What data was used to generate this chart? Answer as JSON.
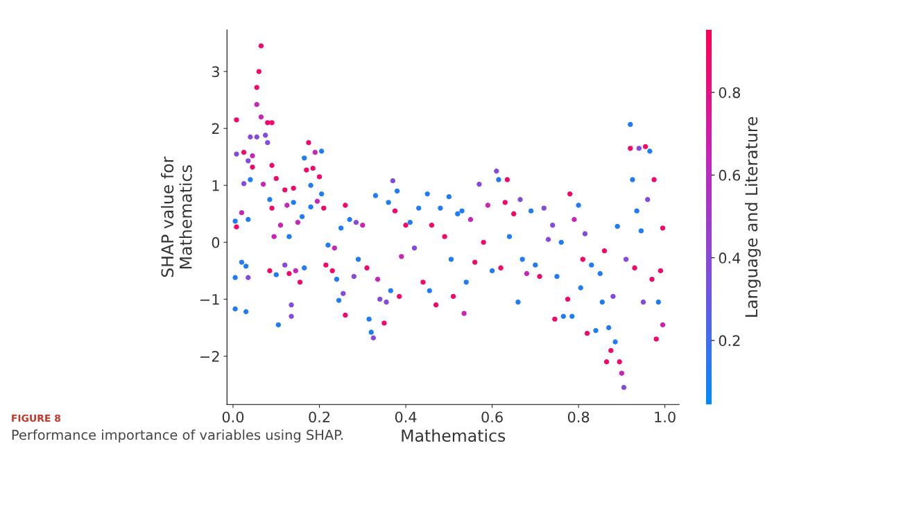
{
  "chart_data": {
    "type": "scatter",
    "xlabel": "Mathematics",
    "ylabel": "SHAP value for\nMathematics",
    "clabel": "Language and Literature",
    "annotations": [
      "FIGURE 8",
      "Performance importance of variables using SHAP."
    ],
    "xlim": [
      -0.014,
      1.033
    ],
    "ylim": [
      -2.85,
      3.73
    ],
    "xticks": [
      {
        "value": 0,
        "label": "0.0"
      },
      {
        "value": 0.2,
        "label": "0.2"
      },
      {
        "value": 0.4,
        "label": "0.4"
      },
      {
        "value": 0.6,
        "label": "0.6"
      },
      {
        "value": 0.8,
        "label": "0.8"
      },
      {
        "value": 1,
        "label": "1.0"
      }
    ],
    "yticks": [
      {
        "value": -2,
        "label": "−2"
      },
      {
        "value": -1,
        "label": "−1"
      },
      0,
      1,
      2,
      3
    ],
    "clim": [
      0.045,
      0.951
    ],
    "cticks": [
      0.2,
      0.4,
      0.6,
      0.8
    ],
    "grid": false,
    "legend": false,
    "marker": "circle",
    "x": [
      0.008,
      0.008,
      0.005,
      0.005,
      0.005,
      0.008,
      0.02,
      0.02,
      0.025,
      0.025,
      0.03,
      0.03,
      0.035,
      0.035,
      0.035,
      0.04,
      0.04,
      0.045,
      0.045,
      0.055,
      0.055,
      0.055,
      0.06,
      0.065,
      0.065,
      0.07,
      0.075,
      0.08,
      0.08,
      0.085,
      0.09,
      0.09,
      0.085,
      0.09,
      0.095,
      0.1,
      0.1,
      0.105,
      0.11,
      0.12,
      0.12,
      0.125,
      0.13,
      0.13,
      0.135,
      0.135,
      0.14,
      0.14,
      0.145,
      0.15,
      0.155,
      0.16,
      0.165,
      0.165,
      0.17,
      0.175,
      0.18,
      0.18,
      0.185,
      0.19,
      0.195,
      0.2,
      0.205,
      0.205,
      0.21,
      0.215,
      0.22,
      0.23,
      0.235,
      0.24,
      0.245,
      0.25,
      0.255,
      0.26,
      0.26,
      0.27,
      0.28,
      0.285,
      0.29,
      0.3,
      0.31,
      0.315,
      0.32,
      0.325,
      0.33,
      0.335,
      0.34,
      0.35,
      0.355,
      0.36,
      0.365,
      0.37,
      0.375,
      0.38,
      0.385,
      0.39,
      0.4,
      0.41,
      0.42,
      0.43,
      0.44,
      0.45,
      0.455,
      0.46,
      0.47,
      0.48,
      0.49,
      0.5,
      0.505,
      0.51,
      0.52,
      0.53,
      0.535,
      0.54,
      0.55,
      0.56,
      0.57,
      0.58,
      0.59,
      0.6,
      0.61,
      0.615,
      0.62,
      0.63,
      0.635,
      0.64,
      0.65,
      0.66,
      0.665,
      0.67,
      0.68,
      0.69,
      0.7,
      0.71,
      0.72,
      0.73,
      0.74,
      0.745,
      0.75,
      0.76,
      0.765,
      0.775,
      0.78,
      0.785,
      0.79,
      0.8,
      0.805,
      0.81,
      0.815,
      0.82,
      0.83,
      0.84,
      0.85,
      0.855,
      0.86,
      0.865,
      0.87,
      0.875,
      0.88,
      0.885,
      0.89,
      0.895,
      0.9,
      0.905,
      0.91,
      0.92,
      0.92,
      0.925,
      0.93,
      0.935,
      0.94,
      0.945,
      0.95,
      0.955,
      0.96,
      0.965,
      0.97,
      0.975,
      0.98,
      0.985,
      0.99,
      0.995,
      0.995
    ],
    "values": [
      2.15,
      0.27,
      0.37,
      -0.62,
      -1.17,
      1.55,
      0.52,
      -0.35,
      1.58,
      1.03,
      -1.22,
      -0.42,
      0.4,
      1.43,
      -0.62,
      1.1,
      1.85,
      1.32,
      1.52,
      1.85,
      2.72,
      2.42,
      3.0,
      3.45,
      2.2,
      1.02,
      1.88,
      2.1,
      1.75,
      0.75,
      2.1,
      1.35,
      -0.5,
      0.6,
      0.1,
      1.12,
      -0.57,
      -1.45,
      0.3,
      0.92,
      -0.4,
      0.65,
      -0.55,
      0.1,
      -1.1,
      -1.3,
      0.7,
      0.95,
      -0.5,
      0.35,
      -0.7,
      0.45,
      1.48,
      -0.45,
      1.27,
      1.75,
      0.62,
      1.0,
      1.3,
      1.58,
      0.72,
      1.15,
      1.6,
      0.85,
      0.6,
      -0.4,
      -0.05,
      -0.5,
      -0.1,
      -0.65,
      -1.02,
      0.25,
      -0.9,
      0.65,
      -1.28,
      0.4,
      -0.6,
      0.35,
      -0.3,
      0.3,
      -0.45,
      -1.35,
      -1.58,
      -1.68,
      0.82,
      -0.65,
      -1.0,
      -1.42,
      -1.05,
      0.7,
      -0.85,
      1.08,
      0.55,
      0.9,
      -0.95,
      -0.25,
      0.3,
      0.35,
      -0.1,
      0.6,
      -0.7,
      0.85,
      -0.85,
      0.3,
      -1.1,
      0.6,
      0.1,
      0.8,
      -0.3,
      -0.95,
      0.5,
      0.55,
      -1.25,
      -0.7,
      0.4,
      -0.35,
      1.02,
      0.0,
      0.65,
      -0.5,
      1.25,
      1.1,
      -0.45,
      0.7,
      1.1,
      0.1,
      0.5,
      -1.05,
      0.75,
      -0.3,
      -0.55,
      0.55,
      -0.4,
      -0.6,
      0.6,
      0.05,
      0.3,
      -1.35,
      -0.6,
      0.0,
      -1.3,
      -1.0,
      0.85,
      -1.3,
      0.4,
      0.65,
      -0.8,
      -0.3,
      0.15,
      -1.6,
      -0.4,
      -1.55,
      -0.55,
      -1.05,
      -0.15,
      -2.1,
      -1.5,
      -1.9,
      -0.95,
      -1.75,
      0.28,
      -2.1,
      -2.3,
      -2.55,
      -0.3,
      2.07,
      1.65,
      1.1,
      -0.45,
      0.55,
      1.65,
      0.2,
      -1.05,
      1.68,
      0.75,
      1.6,
      -0.65,
      1.1,
      -1.7,
      -1.05,
      -0.5,
      0.25,
      -1.45
    ],
    "cvalues": [
      0.88,
      0.88,
      0.12,
      0.12,
      0.12,
      0.38,
      0.65,
      0.12,
      0.88,
      0.38,
      0.12,
      0.12,
      0.12,
      0.38,
      0.38,
      0.12,
      0.38,
      0.88,
      0.65,
      0.38,
      0.88,
      0.65,
      0.88,
      0.88,
      0.65,
      0.65,
      0.38,
      0.88,
      0.38,
      0.12,
      0.88,
      0.88,
      0.88,
      0.88,
      0.65,
      0.88,
      0.12,
      0.12,
      0.65,
      0.88,
      0.38,
      0.65,
      0.88,
      0.12,
      0.38,
      0.38,
      0.12,
      0.88,
      0.65,
      0.65,
      0.88,
      0.12,
      0.12,
      0.12,
      0.88,
      0.88,
      0.12,
      0.12,
      0.88,
      0.65,
      0.65,
      0.88,
      0.12,
      0.12,
      0.88,
      0.88,
      0.12,
      0.88,
      0.65,
      0.12,
      0.12,
      0.12,
      0.38,
      0.88,
      0.88,
      0.12,
      0.38,
      0.38,
      0.12,
      0.65,
      0.88,
      0.12,
      0.12,
      0.38,
      0.12,
      0.65,
      0.38,
      0.88,
      0.38,
      0.12,
      0.12,
      0.38,
      0.88,
      0.12,
      0.88,
      0.65,
      0.88,
      0.12,
      0.38,
      0.12,
      0.88,
      0.12,
      0.12,
      0.88,
      0.88,
      0.12,
      0.88,
      0.12,
      0.12,
      0.88,
      0.12,
      0.12,
      0.65,
      0.12,
      0.65,
      0.88,
      0.38,
      0.88,
      0.65,
      0.12,
      0.38,
      0.12,
      0.88,
      0.88,
      0.88,
      0.12,
      0.88,
      0.12,
      0.38,
      0.12,
      0.65,
      0.12,
      0.12,
      0.88,
      0.38,
      0.38,
      0.38,
      0.88,
      0.12,
      0.12,
      0.12,
      0.88,
      0.88,
      0.12,
      0.65,
      0.12,
      0.12,
      0.88,
      0.38,
      0.88,
      0.12,
      0.12,
      0.12,
      0.12,
      0.88,
      0.88,
      0.12,
      0.88,
      0.38,
      0.12,
      0.12,
      0.88,
      0.65,
      0.38,
      0.38,
      0.12,
      0.88,
      0.12,
      0.88,
      0.12,
      0.38,
      0.12,
      0.38,
      0.88,
      0.38,
      0.12,
      0.88,
      0.88,
      0.88,
      0.12,
      0.88,
      0.88,
      0.65
    ]
  }
}
